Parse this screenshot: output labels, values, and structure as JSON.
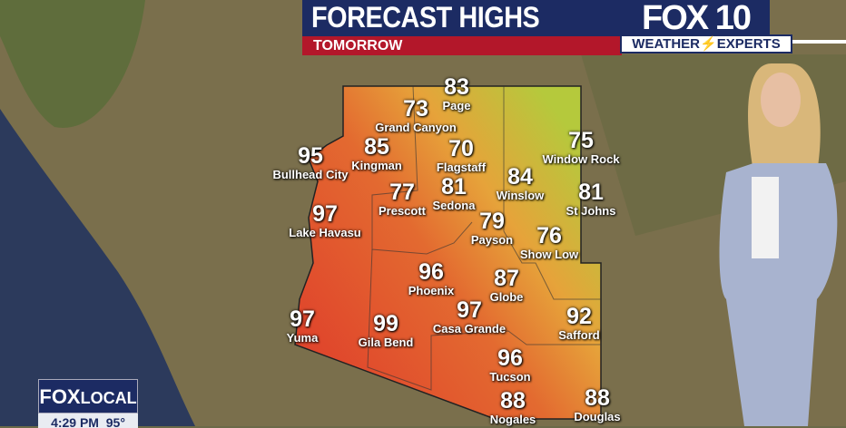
{
  "header": {
    "title": "FORECAST HIGHS",
    "subtitle": "TOMORROW"
  },
  "branding": {
    "station_logo": "FOX 10",
    "tagline_left": "WEATHER",
    "tagline_right": "EXPERTS",
    "local_logo_fox": "FOX",
    "local_logo_local": "LOCAL"
  },
  "ticker": {
    "time": "4:29 PM",
    "temp": "95°"
  },
  "colors": {
    "header_blue": "#1c2b63",
    "subtitle_red": "#b3172a",
    "hot": "#e0452c",
    "mild": "#e9a53a",
    "cool": "#b9c93c"
  },
  "cities": [
    {
      "name": "Page",
      "temp": "83"
    },
    {
      "name": "Grand Canyon",
      "temp": "73"
    },
    {
      "name": "Kingman",
      "temp": "85"
    },
    {
      "name": "Flagstaff",
      "temp": "70"
    },
    {
      "name": "Window Rock",
      "temp": "75"
    },
    {
      "name": "Bullhead City",
      "temp": "95"
    },
    {
      "name": "Winslow",
      "temp": "84"
    },
    {
      "name": "Prescott",
      "temp": "77"
    },
    {
      "name": "Sedona",
      "temp": "81"
    },
    {
      "name": "St Johns",
      "temp": "81"
    },
    {
      "name": "Lake Havasu",
      "temp": "97"
    },
    {
      "name": "Payson",
      "temp": "79"
    },
    {
      "name": "Show Low",
      "temp": "76"
    },
    {
      "name": "Phoenix",
      "temp": "96"
    },
    {
      "name": "Globe",
      "temp": "87"
    },
    {
      "name": "Casa Grande",
      "temp": "97"
    },
    {
      "name": "Safford",
      "temp": "92"
    },
    {
      "name": "Yuma",
      "temp": "97"
    },
    {
      "name": "Gila Bend",
      "temp": "99"
    },
    {
      "name": "Tucson",
      "temp": "96"
    },
    {
      "name": "Nogales",
      "temp": "88"
    },
    {
      "name": "Douglas",
      "temp": "88"
    }
  ]
}
